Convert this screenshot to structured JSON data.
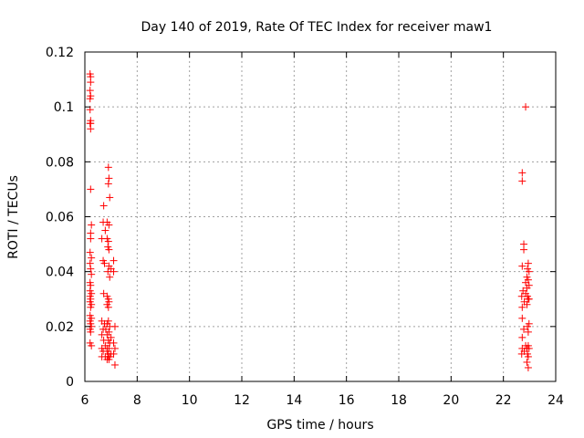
{
  "chart_data": {
    "type": "scatter",
    "title": "Day 140 of 2019, Rate Of TEC Index for receiver maw1",
    "xlabel": "GPS time / hours",
    "ylabel": "ROTI / TECUs",
    "xlim": [
      6,
      24
    ],
    "ylim": [
      0,
      0.12
    ],
    "xticks": [
      6,
      8,
      10,
      12,
      14,
      16,
      18,
      20,
      22,
      24
    ],
    "yticks": [
      0,
      0.02,
      0.04,
      0.06,
      0.08,
      0.1,
      0.12
    ],
    "ytick_labels": [
      "0",
      "0.02",
      "0.04",
      "0.06",
      "0.08",
      "0.1",
      "0.12"
    ],
    "grid": true,
    "marker": "+",
    "color": "#ff0000",
    "series": [
      {
        "name": "ROTI",
        "points": [
          [
            6.2,
            0.112
          ],
          [
            6.22,
            0.111
          ],
          [
            6.22,
            0.109
          ],
          [
            6.2,
            0.106
          ],
          [
            6.22,
            0.104
          ],
          [
            6.2,
            0.103
          ],
          [
            6.2,
            0.099
          ],
          [
            6.22,
            0.095
          ],
          [
            6.2,
            0.094
          ],
          [
            6.22,
            0.094
          ],
          [
            6.22,
            0.092
          ],
          [
            6.22,
            0.07
          ],
          [
            6.25,
            0.057
          ],
          [
            6.22,
            0.054
          ],
          [
            6.22,
            0.052
          ],
          [
            6.2,
            0.047
          ],
          [
            6.25,
            0.045
          ],
          [
            6.2,
            0.043
          ],
          [
            6.22,
            0.041
          ],
          [
            6.25,
            0.039
          ],
          [
            6.2,
            0.036
          ],
          [
            6.22,
            0.035
          ],
          [
            6.2,
            0.033
          ],
          [
            6.25,
            0.032
          ],
          [
            6.2,
            0.031
          ],
          [
            6.22,
            0.03
          ],
          [
            6.2,
            0.029
          ],
          [
            6.25,
            0.028
          ],
          [
            6.22,
            0.027
          ],
          [
            6.2,
            0.024
          ],
          [
            6.25,
            0.023
          ],
          [
            6.2,
            0.022
          ],
          [
            6.22,
            0.021
          ],
          [
            6.25,
            0.02
          ],
          [
            6.2,
            0.019
          ],
          [
            6.22,
            0.018
          ],
          [
            6.2,
            0.014
          ],
          [
            6.25,
            0.013
          ],
          [
            6.9,
            0.078
          ],
          [
            6.92,
            0.074
          ],
          [
            6.9,
            0.072
          ],
          [
            6.95,
            0.067
          ],
          [
            6.72,
            0.064
          ],
          [
            6.7,
            0.058
          ],
          [
            6.85,
            0.058
          ],
          [
            6.92,
            0.057
          ],
          [
            6.78,
            0.055
          ],
          [
            6.65,
            0.052
          ],
          [
            6.85,
            0.052
          ],
          [
            6.9,
            0.051
          ],
          [
            6.88,
            0.049
          ],
          [
            6.92,
            0.048
          ],
          [
            6.7,
            0.044
          ],
          [
            6.75,
            0.043
          ],
          [
            7.1,
            0.044
          ],
          [
            6.92,
            0.042
          ],
          [
            7.0,
            0.041
          ],
          [
            6.88,
            0.04
          ],
          [
            7.1,
            0.04
          ],
          [
            6.95,
            0.038
          ],
          [
            6.72,
            0.032
          ],
          [
            6.85,
            0.031
          ],
          [
            6.9,
            0.03
          ],
          [
            6.92,
            0.029
          ],
          [
            6.85,
            0.028
          ],
          [
            6.9,
            0.027
          ],
          [
            6.65,
            0.022
          ],
          [
            6.9,
            0.022
          ],
          [
            6.75,
            0.021
          ],
          [
            6.85,
            0.021
          ],
          [
            7.15,
            0.02
          ],
          [
            6.95,
            0.02
          ],
          [
            6.7,
            0.019
          ],
          [
            6.8,
            0.019
          ],
          [
            6.92,
            0.018
          ],
          [
            6.65,
            0.017
          ],
          [
            6.85,
            0.017
          ],
          [
            7.0,
            0.016
          ],
          [
            6.72,
            0.015
          ],
          [
            6.9,
            0.015
          ],
          [
            6.95,
            0.014
          ],
          [
            7.1,
            0.014
          ],
          [
            6.78,
            0.013
          ],
          [
            6.85,
            0.012
          ],
          [
            6.65,
            0.012
          ],
          [
            6.92,
            0.012
          ],
          [
            7.15,
            0.012
          ],
          [
            6.7,
            0.011
          ],
          [
            6.85,
            0.011
          ],
          [
            6.9,
            0.01
          ],
          [
            7.0,
            0.01
          ],
          [
            7.1,
            0.01
          ],
          [
            6.78,
            0.009
          ],
          [
            6.88,
            0.009
          ],
          [
            6.95,
            0.009
          ],
          [
            6.65,
            0.009
          ],
          [
            6.85,
            0.008
          ],
          [
            6.92,
            0.008
          ],
          [
            7.15,
            0.006
          ],
          [
            22.85,
            0.1
          ],
          [
            22.72,
            0.076
          ],
          [
            22.72,
            0.073
          ],
          [
            22.78,
            0.05
          ],
          [
            22.78,
            0.048
          ],
          [
            22.95,
            0.043
          ],
          [
            22.72,
            0.042
          ],
          [
            22.92,
            0.041
          ],
          [
            22.98,
            0.04
          ],
          [
            22.9,
            0.038
          ],
          [
            22.95,
            0.037
          ],
          [
            22.85,
            0.036
          ],
          [
            22.98,
            0.035
          ],
          [
            22.9,
            0.034
          ],
          [
            22.75,
            0.033
          ],
          [
            22.85,
            0.032
          ],
          [
            22.7,
            0.031
          ],
          [
            22.92,
            0.031
          ],
          [
            22.95,
            0.03
          ],
          [
            22.98,
            0.03
          ],
          [
            22.8,
            0.029
          ],
          [
            22.9,
            0.028
          ],
          [
            22.72,
            0.027
          ],
          [
            22.72,
            0.023
          ],
          [
            22.98,
            0.021
          ],
          [
            22.92,
            0.02
          ],
          [
            22.78,
            0.019
          ],
          [
            22.95,
            0.018
          ],
          [
            22.72,
            0.016
          ],
          [
            22.85,
            0.013
          ],
          [
            22.95,
            0.013
          ],
          [
            22.72,
            0.012
          ],
          [
            22.9,
            0.012
          ],
          [
            22.98,
            0.012
          ],
          [
            22.8,
            0.011
          ],
          [
            22.7,
            0.01
          ],
          [
            22.92,
            0.01
          ],
          [
            22.95,
            0.009
          ],
          [
            22.9,
            0.007
          ],
          [
            22.95,
            0.005
          ]
        ]
      }
    ]
  }
}
